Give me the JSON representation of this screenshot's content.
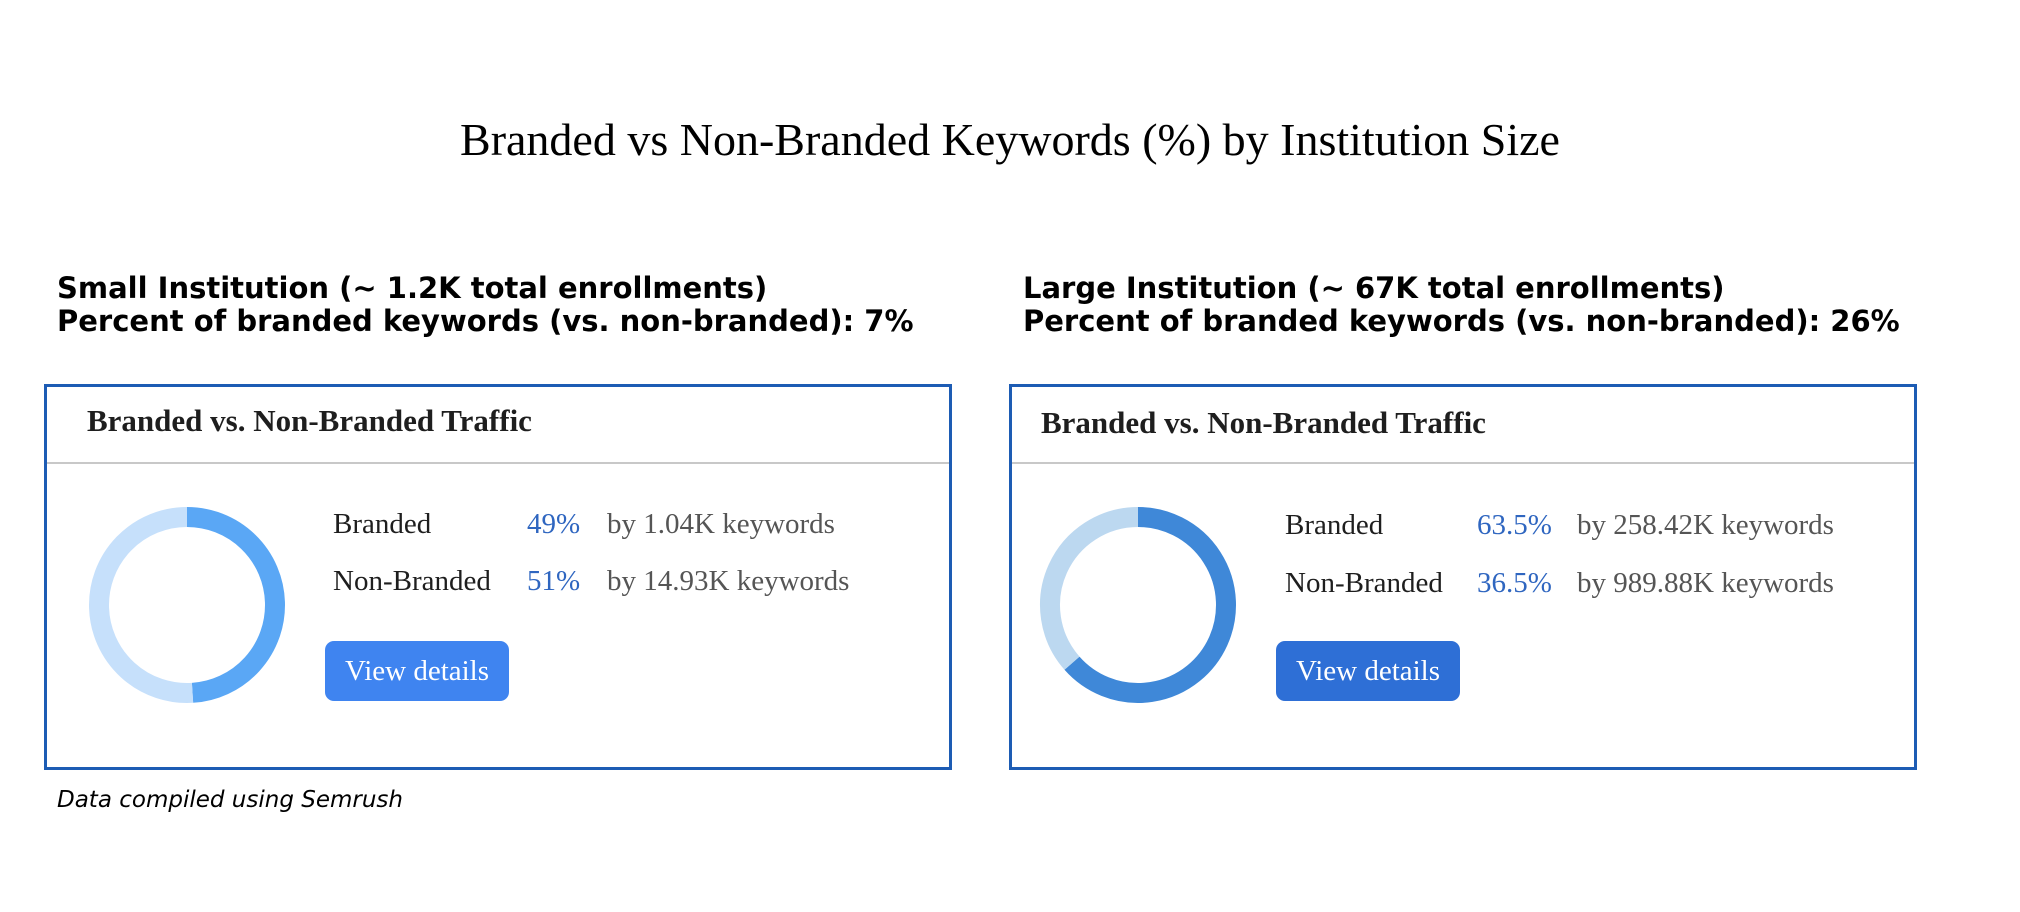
{
  "title": "Branded vs Non-Branded Keywords (%) by Institution Size",
  "footnote": "Data compiled using Semrush",
  "colors": {
    "card_border": "#1d5cb4",
    "pct_text": "#2f66c0",
    "left_branded": "#5aa7f5",
    "left_nonbranded": "#c6e0fb",
    "left_button": "#3f84f0",
    "right_branded": "#3f88d8",
    "right_nonbranded": "#bcd8f0",
    "right_button": "#2e6fd6"
  },
  "panels": [
    {
      "heading_line1": "Small Institution (~ 1.2K total enrollments)",
      "heading_line2": "Percent of branded keywords (vs. non-branded): 7%",
      "card_title": "Branded vs. Non-Branded Traffic",
      "rows": [
        {
          "label": "Branded",
          "pct": "49%",
          "keywords": "by 1.04K keywords"
        },
        {
          "label": "Non-Branded",
          "pct": "51%",
          "keywords": "by 14.93K keywords"
        }
      ],
      "button_label": "View details"
    },
    {
      "heading_line1": "Large Institution (~ 67K total enrollments)",
      "heading_line2": "Percent of branded keywords (vs. non-branded): 26%",
      "card_title": "Branded vs. Non-Branded Traffic",
      "rows": [
        {
          "label": "Branded",
          "pct": "63.5%",
          "keywords": "by 258.42K keywords"
        },
        {
          "label": "Non-Branded",
          "pct": "36.5%",
          "keywords": "by 989.88K keywords"
        }
      ],
      "button_label": "View details"
    }
  ],
  "chart_data": [
    {
      "type": "pie",
      "categories": [
        "Branded",
        "Non-Branded"
      ],
      "values": [
        49,
        51
      ]
    },
    {
      "type": "pie",
      "categories": [
        "Branded",
        "Non-Branded"
      ],
      "values": [
        63.5,
        36.5
      ]
    }
  ]
}
